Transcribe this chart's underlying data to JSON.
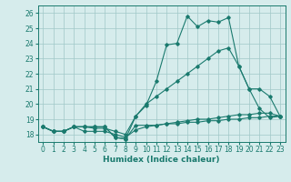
{
  "xlabel": "Humidex (Indice chaleur)",
  "x": [
    0,
    1,
    2,
    3,
    4,
    5,
    6,
    7,
    8,
    9,
    10,
    11,
    12,
    13,
    14,
    15,
    16,
    17,
    18,
    19,
    20,
    21,
    22,
    23
  ],
  "line1": [
    18.5,
    18.2,
    18.2,
    18.5,
    18.5,
    18.5,
    18.5,
    17.8,
    17.7,
    19.2,
    19.9,
    21.5,
    23.9,
    24.0,
    25.8,
    25.1,
    25.5,
    25.4,
    25.7,
    22.5,
    21.0,
    19.7,
    19.1,
    19.2
  ],
  "line2": [
    18.5,
    18.2,
    18.2,
    18.5,
    18.5,
    18.5,
    18.5,
    17.8,
    17.7,
    18.6,
    18.6,
    18.6,
    18.7,
    18.7,
    18.8,
    18.8,
    18.9,
    18.9,
    19.0,
    19.0,
    19.1,
    19.1,
    19.2,
    19.2
  ],
  "line3": [
    18.5,
    18.2,
    18.2,
    18.5,
    18.5,
    18.4,
    18.4,
    18.2,
    18.0,
    19.2,
    20.0,
    20.5,
    21.0,
    21.5,
    22.0,
    22.5,
    23.0,
    23.5,
    23.7,
    22.5,
    21.0,
    21.0,
    20.5,
    19.2
  ],
  "line4": [
    18.5,
    18.2,
    18.2,
    18.5,
    18.2,
    18.2,
    18.2,
    18.0,
    17.8,
    18.3,
    18.5,
    18.6,
    18.7,
    18.8,
    18.9,
    19.0,
    19.0,
    19.1,
    19.2,
    19.3,
    19.3,
    19.4,
    19.4,
    19.2
  ],
  "color": "#1a7a6e",
  "bg_color": "#d6ecec",
  "grid_color": "#a0c8c8",
  "ylim": [
    17.5,
    26.5
  ],
  "xlim": [
    -0.5,
    23.5
  ],
  "yticks": [
    18,
    19,
    20,
    21,
    22,
    23,
    24,
    25,
    26
  ],
  "xticks": [
    0,
    1,
    2,
    3,
    4,
    5,
    6,
    7,
    8,
    9,
    10,
    11,
    12,
    13,
    14,
    15,
    16,
    17,
    18,
    19,
    20,
    21,
    22,
    23
  ]
}
